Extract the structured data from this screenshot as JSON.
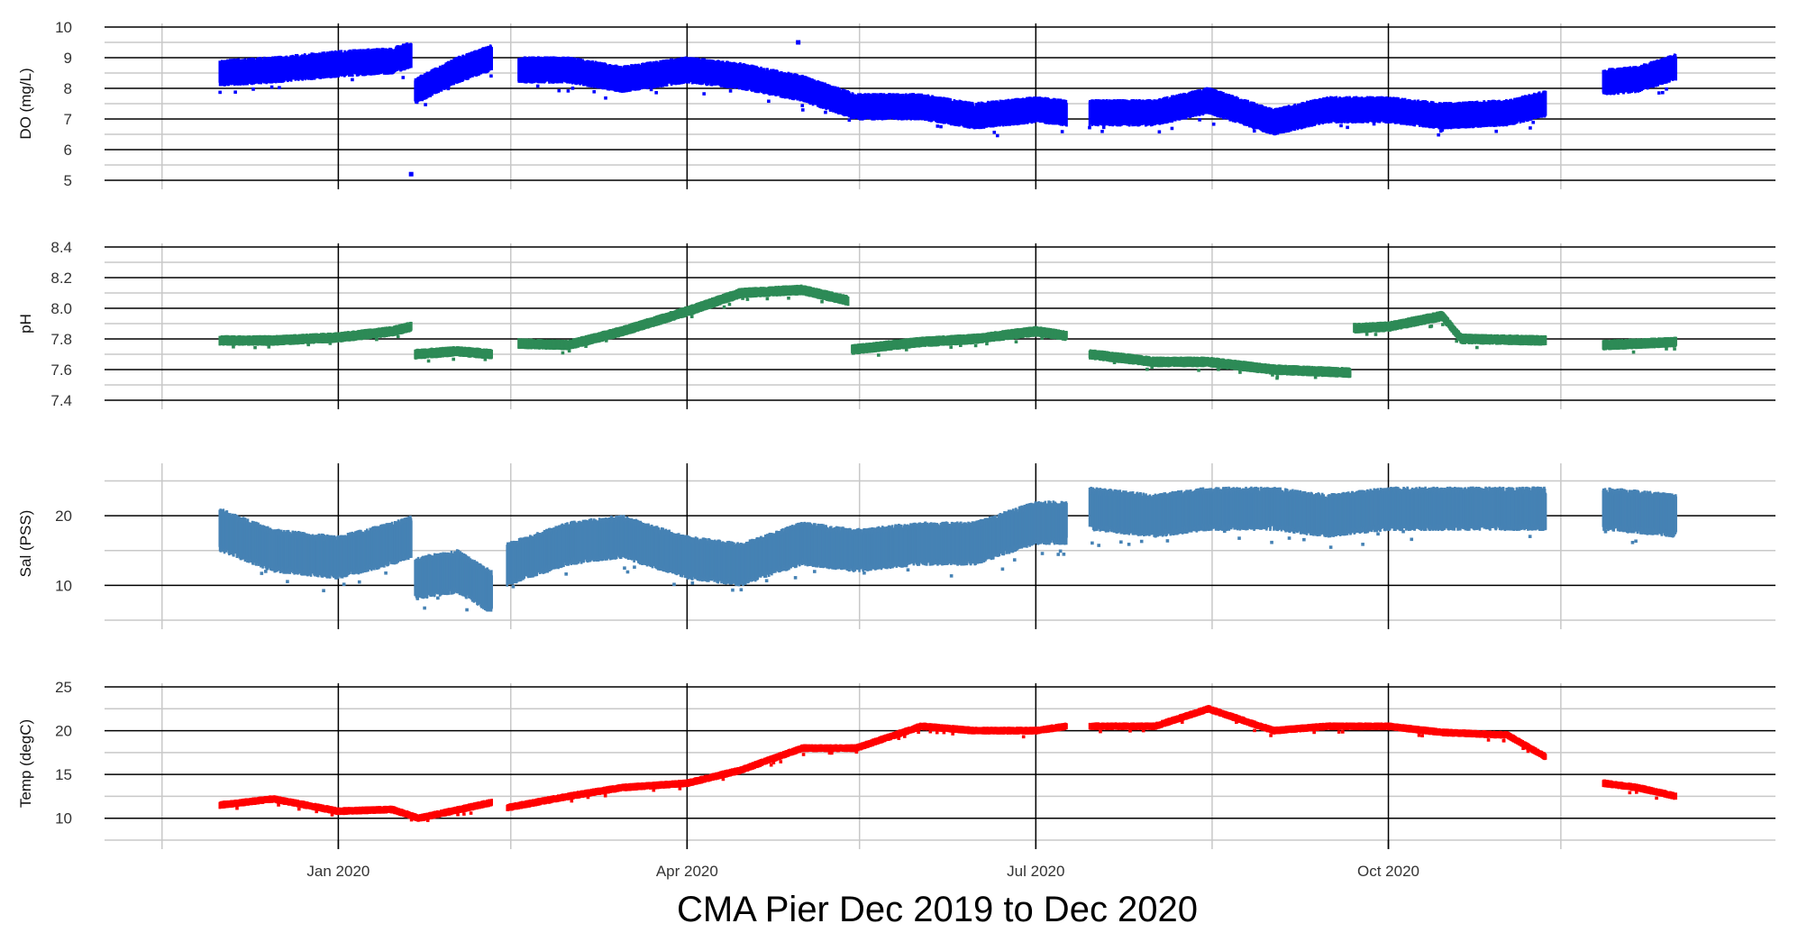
{
  "caption": "CMA Pier Dec 2019 to Dec 2020",
  "x_axis": {
    "range": [
      "2019-11-01",
      "2021-01-10"
    ],
    "major_ticks": [
      {
        "date": "2020-01-01",
        "label": "Jan 2020"
      },
      {
        "date": "2020-04-01",
        "label": "Apr 2020"
      },
      {
        "date": "2020-07-01",
        "label": "Jul 2020"
      },
      {
        "date": "2020-10-01",
        "label": "Oct 2020"
      }
    ],
    "minor_ticks": [
      "2019-11-16",
      "2020-02-15",
      "2020-05-16",
      "2020-08-16",
      "2020-11-15"
    ]
  },
  "chart_data": [
    {
      "type": "scatter",
      "ylabel": "DO (mg/L)",
      "color": "#0000ff",
      "ylim": [
        5,
        10
      ],
      "yticks": [
        "5",
        "6",
        "7",
        "8",
        "9",
        "10"
      ],
      "grid": true,
      "series": [
        {
          "segments": [
            {
              "x": [
                "2019-12-01",
                "2019-12-15",
                "2020-01-01",
                "2020-01-15",
                "2020-01-20"
              ],
              "y": [
                8.5,
                8.6,
                8.8,
                8.9,
                9.1
              ]
            },
            {
              "x": [
                "2020-01-21",
                "2020-02-01",
                "2020-02-10"
              ],
              "y": [
                7.9,
                8.6,
                9.0
              ]
            },
            {
              "x": [
                "2020-02-17",
                "2020-03-01",
                "2020-03-15",
                "2020-04-01",
                "2020-04-15",
                "2020-05-01",
                "2020-05-15",
                "2020-06-01",
                "2020-06-15",
                "2020-07-01",
                "2020-07-09"
              ],
              "y": [
                8.6,
                8.6,
                8.3,
                8.6,
                8.4,
                8.0,
                7.4,
                7.4,
                7.1,
                7.3,
                7.2
              ]
            },
            {
              "x": [
                "2020-07-15",
                "2020-08-01",
                "2020-08-15",
                "2020-09-01",
                "2020-09-15",
                "2020-10-01",
                "2020-10-15",
                "2020-11-01",
                "2020-11-11"
              ],
              "y": [
                7.2,
                7.2,
                7.6,
                6.9,
                7.3,
                7.3,
                7.1,
                7.2,
                7.5
              ]
            },
            {
              "x": [
                "2020-11-26",
                "2020-12-05",
                "2020-12-15"
              ],
              "y": [
                8.2,
                8.3,
                8.7
              ]
            }
          ],
          "outliers": [
            {
              "x": "2020-01-20",
              "y": 5.2
            },
            {
              "x": "2020-04-30",
              "y": 9.5
            }
          ]
        }
      ]
    },
    {
      "type": "scatter",
      "ylabel": "pH",
      "color": "#2e8b57",
      "ylim": [
        7.4,
        8.4
      ],
      "yticks": [
        "7.4",
        "7.6",
        "7.8",
        "8.0",
        "8.2",
        "8.4"
      ],
      "grid": true,
      "series": [
        {
          "segments": [
            {
              "x": [
                "2019-12-01",
                "2019-12-15",
                "2020-01-01",
                "2020-01-15",
                "2020-01-20"
              ],
              "y": [
                7.79,
                7.79,
                7.81,
                7.85,
                7.88
              ]
            },
            {
              "x": [
                "2020-01-21",
                "2020-02-01",
                "2020-02-10"
              ],
              "y": [
                7.7,
                7.72,
                7.7
              ]
            },
            {
              "x": [
                "2020-02-17",
                "2020-03-01",
                "2020-03-15",
                "2020-04-01",
                "2020-04-15",
                "2020-05-01",
                "2020-05-13"
              ],
              "y": [
                7.77,
                7.76,
                7.85,
                7.98,
                8.1,
                8.12,
                8.05
              ]
            },
            {
              "x": [
                "2020-05-14",
                "2020-06-01",
                "2020-06-15",
                "2020-07-01",
                "2020-07-09"
              ],
              "y": [
                7.73,
                7.78,
                7.8,
                7.85,
                7.82
              ]
            },
            {
              "x": [
                "2020-07-15",
                "2020-08-01",
                "2020-08-15",
                "2020-09-01",
                "2020-09-21"
              ],
              "y": [
                7.7,
                7.65,
                7.65,
                7.6,
                7.58
              ]
            },
            {
              "x": [
                "2020-09-22",
                "2020-10-01",
                "2020-10-15",
                "2020-10-20",
                "2020-11-11"
              ],
              "y": [
                7.87,
                7.88,
                7.95,
                7.8,
                7.79
              ]
            },
            {
              "x": [
                "2020-11-26",
                "2020-12-15"
              ],
              "y": [
                7.76,
                7.78
              ]
            }
          ],
          "outliers": []
        }
      ]
    },
    {
      "type": "scatter",
      "ylabel": "Sal (PSS)",
      "color": "#4682b4",
      "ylim": [
        5,
        27
      ],
      "yticks": [
        "10",
        "20"
      ],
      "grid": true,
      "series": [
        {
          "segments": [
            {
              "x": [
                "2019-12-01",
                "2019-12-15",
                "2020-01-01",
                "2020-01-15",
                "2020-01-20"
              ],
              "y": [
                18,
                15,
                14,
                16,
                17
              ]
            },
            {
              "x": [
                "2020-01-21",
                "2020-02-01",
                "2020-02-10"
              ],
              "y": [
                11,
                12,
                9
              ]
            },
            {
              "x": [
                "2020-02-14",
                "2020-03-01",
                "2020-03-15",
                "2020-04-01",
                "2020-04-15",
                "2020-05-01",
                "2020-05-15",
                "2020-06-01",
                "2020-06-15",
                "2020-07-01",
                "2020-07-09"
              ],
              "y": [
                13,
                16,
                17,
                14,
                13,
                16,
                15,
                16,
                16,
                19,
                19
              ]
            },
            {
              "x": [
                "2020-07-15",
                "2020-08-01",
                "2020-08-15",
                "2020-09-01",
                "2020-09-15",
                "2020-10-01",
                "2020-10-15",
                "2020-11-01",
                "2020-11-11"
              ],
              "y": [
                21,
                20,
                21,
                21,
                20,
                21,
                21,
                21,
                21
              ]
            },
            {
              "x": [
                "2020-11-26",
                "2020-12-15"
              ],
              "y": [
                21,
                20
              ]
            }
          ],
          "outliers": []
        }
      ]
    },
    {
      "type": "scatter",
      "ylabel": "Temp (degC)",
      "color": "#ff0000",
      "ylim": [
        7.5,
        25
      ],
      "yticks": [
        "10",
        "15",
        "20",
        "25"
      ],
      "grid": true,
      "series": [
        {
          "segments": [
            {
              "x": [
                "2019-12-01",
                "2019-12-15",
                "2020-01-01",
                "2020-01-15",
                "2020-01-22",
                "2020-02-10"
              ],
              "y": [
                11.5,
                12.2,
                10.8,
                11.0,
                10.0,
                11.8
              ]
            },
            {
              "x": [
                "2020-02-14",
                "2020-03-01",
                "2020-03-15",
                "2020-04-01",
                "2020-04-15",
                "2020-05-01",
                "2020-05-15",
                "2020-06-01",
                "2020-06-15",
                "2020-07-01",
                "2020-07-09"
              ],
              "y": [
                11.2,
                12.5,
                13.5,
                14.0,
                15.5,
                18.0,
                18.0,
                20.5,
                20.0,
                20.0,
                20.5
              ]
            },
            {
              "x": [
                "2020-07-15",
                "2020-08-01",
                "2020-08-15",
                "2020-09-01",
                "2020-09-15",
                "2020-10-01",
                "2020-10-15",
                "2020-11-01",
                "2020-11-11"
              ],
              "y": [
                20.5,
                20.5,
                22.5,
                20.0,
                20.5,
                20.5,
                19.8,
                19.5,
                17.0
              ]
            },
            {
              "x": [
                "2020-11-26",
                "2020-12-05",
                "2020-12-15"
              ],
              "y": [
                14.0,
                13.5,
                12.5
              ]
            }
          ],
          "outliers": []
        }
      ]
    }
  ]
}
